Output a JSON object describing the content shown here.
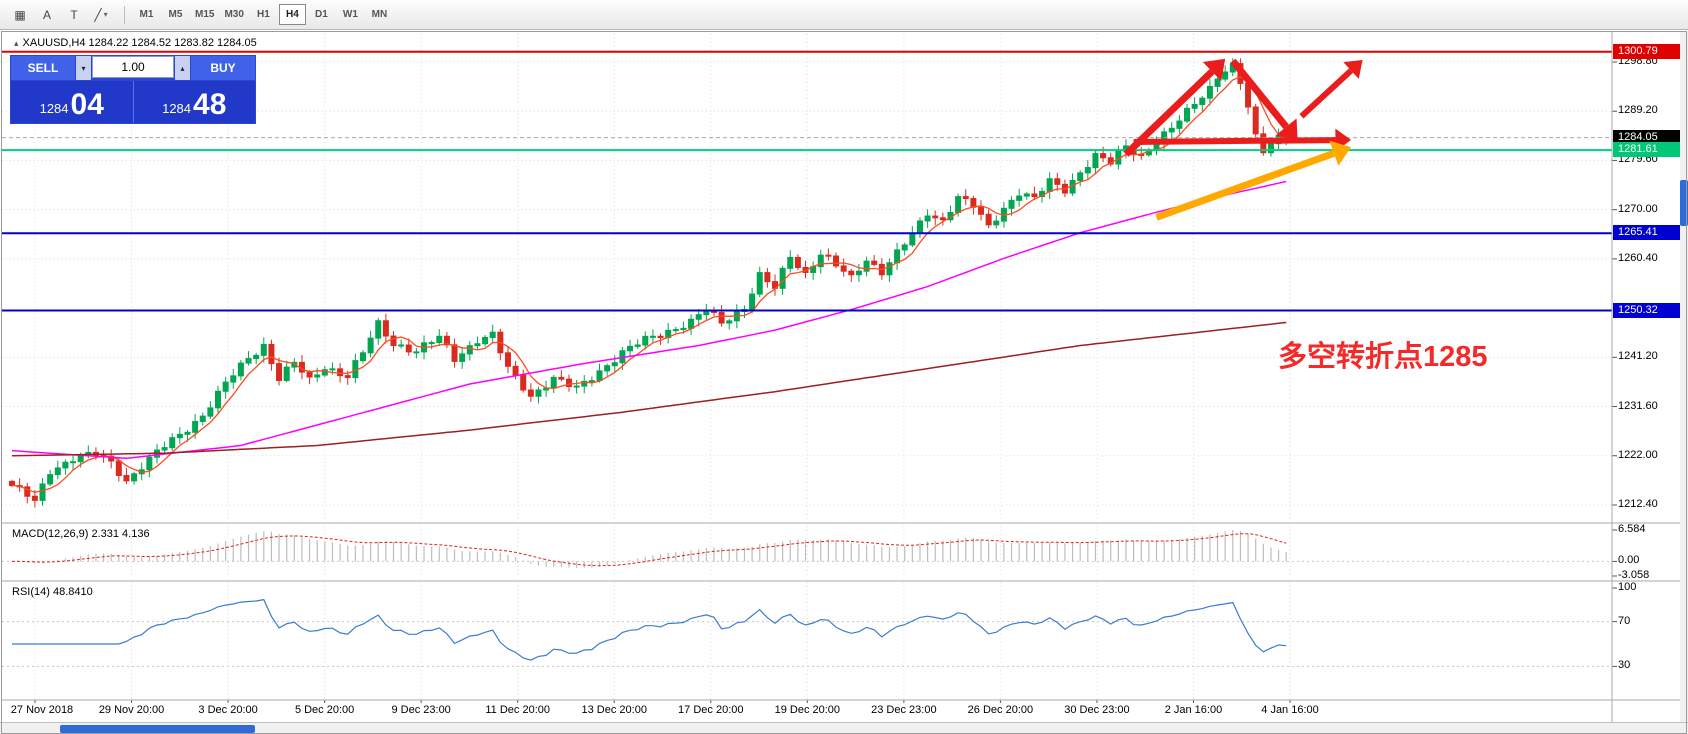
{
  "toolbar": {
    "icons": [
      {
        "name": "grid-icon",
        "glyph": "▦"
      },
      {
        "name": "text-tool-icon",
        "glyph": "A"
      },
      {
        "name": "text-frame-tool-icon",
        "glyph": "T"
      },
      {
        "name": "line-tool-icon",
        "glyph": "╱"
      },
      {
        "name": "dropdown-caret-icon",
        "glyph": "▾"
      }
    ],
    "timeframes": [
      "M1",
      "M5",
      "M15",
      "M30",
      "H1",
      "H4",
      "D1",
      "W1",
      "MN"
    ],
    "active_timeframe": "H4"
  },
  "chart": {
    "title_marker": "▴",
    "title": "XAUUSD,H4  1284.22 1284.52 1283.82 1284.05",
    "annotation": {
      "text": "多空转折点1285",
      "color": "#f42a2a"
    }
  },
  "trade_panel": {
    "sell_label": "SELL",
    "buy_label": "BUY",
    "lot_value": "1.00",
    "dec_glyph": "▾",
    "inc_glyph": "▴",
    "bid": {
      "main": "1284",
      "pips": "04"
    },
    "ask": {
      "main": "1284",
      "pips": "48"
    }
  },
  "indicators": {
    "macd": {
      "label": "MACD(12,26,9) 2.331 4.136",
      "scale": [
        "6.584",
        "0.00",
        "-3.058"
      ]
    },
    "rsi": {
      "label": "RSI(14) 48.8410",
      "scale": [
        "100",
        "70",
        "30"
      ]
    }
  },
  "price_scale": {
    "ticks": [
      {
        "label": "1298.80",
        "price": 1298.8
      },
      {
        "label": "1289.20",
        "price": 1289.2
      },
      {
        "label": "1279.60",
        "price": 1279.6
      },
      {
        "label": "1270.00",
        "price": 1270.0
      },
      {
        "label": "1260.40",
        "price": 1260.4
      },
      {
        "label": "1241.20",
        "price": 1241.2
      },
      {
        "label": "1231.60",
        "price": 1231.6
      },
      {
        "label": "1222.00",
        "price": 1222.0
      },
      {
        "label": "1212.40",
        "price": 1212.4
      }
    ],
    "badges": [
      {
        "label": "1300.79",
        "price": 1300.79,
        "bg": "#e00000",
        "fg": "#ffffff"
      },
      {
        "label": "1284.05",
        "price": 1284.05,
        "bg": "#000000",
        "fg": "#ffffff"
      },
      {
        "label": "1281.61",
        "price": 1281.61,
        "bg": "#00c878",
        "fg": "#ffffff"
      },
      {
        "label": "1265.41",
        "price": 1265.41,
        "bg": "#0000d0",
        "fg": "#ffffff"
      },
      {
        "label": "1250.32",
        "price": 1250.32,
        "bg": "#0000d0",
        "fg": "#ffffff"
      }
    ]
  },
  "time_axis": [
    "27 Nov 2018",
    "29 Nov 20:00",
    "3 Dec 20:00",
    "5 Dec 20:00",
    "9 Dec 23:00",
    "11 Dec 20:00",
    "13 Dec 20:00",
    "17 Dec 20:00",
    "19 Dec 20:00",
    "23 Dec 23:00",
    "26 Dec 20:00",
    "30 Dec 23:00",
    "2 Jan 16:00",
    "4 Jan 16:00"
  ],
  "chart_data": {
    "type": "candlestick",
    "symbol": "XAUUSD",
    "timeframe": "H4",
    "ohlc_current": {
      "open": 1284.22,
      "high": 1284.52,
      "low": 1283.82,
      "close": 1284.05
    },
    "current_price": {
      "bid": 1284.04,
      "ask": 1284.48,
      "last": 1284.05
    },
    "y_axis": {
      "min": 1212.4,
      "max": 1298.8,
      "tick_step": 9.6
    },
    "num_candles": 168,
    "close_anchors": [
      [
        0,
        1216.2
      ],
      [
        2,
        1214.2
      ],
      [
        3,
        1212.9
      ],
      [
        5,
        1219
      ],
      [
        8,
        1221.6
      ],
      [
        11,
        1222.2
      ],
      [
        13,
        1220.6
      ],
      [
        15,
        1217.2
      ],
      [
        17,
        1220
      ],
      [
        19,
        1222.6
      ],
      [
        22,
        1226
      ],
      [
        25,
        1230
      ],
      [
        28,
        1236
      ],
      [
        31,
        1241
      ],
      [
        33,
        1243.6
      ],
      [
        35,
        1237.2
      ],
      [
        37,
        1240
      ],
      [
        39,
        1236.6
      ],
      [
        41,
        1239.4
      ],
      [
        44,
        1237.6
      ],
      [
        46,
        1242
      ],
      [
        48,
        1247.6
      ],
      [
        50,
        1244
      ],
      [
        53,
        1242.4
      ],
      [
        56,
        1245
      ],
      [
        58,
        1241
      ],
      [
        61,
        1244.6
      ],
      [
        63,
        1245.4
      ],
      [
        65,
        1239
      ],
      [
        68,
        1233.8
      ],
      [
        71,
        1237
      ],
      [
        74,
        1235
      ],
      [
        77,
        1238.6
      ],
      [
        80,
        1242
      ],
      [
        83,
        1244.6
      ],
      [
        86,
        1246.4
      ],
      [
        89,
        1248
      ],
      [
        91,
        1250.4
      ],
      [
        93,
        1248
      ],
      [
        96,
        1251
      ],
      [
        98,
        1257
      ],
      [
        100,
        1254.6
      ],
      [
        102,
        1261
      ],
      [
        104,
        1257.6
      ],
      [
        106,
        1261.4
      ],
      [
        108,
        1259
      ],
      [
        110,
        1256.6
      ],
      [
        112,
        1260.4
      ],
      [
        114,
        1258
      ],
      [
        116,
        1261.4
      ],
      [
        118,
        1265
      ],
      [
        120,
        1269.4
      ],
      [
        122,
        1268
      ],
      [
        124,
        1272.4
      ],
      [
        126,
        1270.6
      ],
      [
        128,
        1266.6
      ],
      [
        130,
        1270.4
      ],
      [
        132,
        1273.4
      ],
      [
        134,
        1272
      ],
      [
        136,
        1275.4
      ],
      [
        138,
        1274
      ],
      [
        140,
        1277.4
      ],
      [
        142,
        1280.4
      ],
      [
        144,
        1279
      ],
      [
        146,
        1282.4
      ],
      [
        148,
        1280.6
      ],
      [
        150,
        1283.4
      ],
      [
        152,
        1285.6
      ],
      [
        154,
        1289
      ],
      [
        156,
        1292.4
      ],
      [
        158,
        1295.6
      ],
      [
        160,
        1298.3
      ],
      [
        161,
        1294.6
      ],
      [
        162,
        1290
      ],
      [
        163,
        1284.6
      ],
      [
        164,
        1281.2
      ],
      [
        165,
        1283
      ],
      [
        166,
        1284.4
      ],
      [
        167,
        1284.05
      ]
    ],
    "up_color": "#00a651",
    "down_color": "#d92b20",
    "ma_fast": {
      "period": 5,
      "color": "#ff4a1f"
    },
    "ma_mid": {
      "color": "#ff00ff",
      "anchors": [
        [
          0,
          1223
        ],
        [
          15,
          1221.5
        ],
        [
          30,
          1224
        ],
        [
          45,
          1230
        ],
        [
          60,
          1236
        ],
        [
          75,
          1240
        ],
        [
          90,
          1243.5
        ],
        [
          100,
          1246.5
        ],
        [
          110,
          1250.5
        ],
        [
          120,
          1255
        ],
        [
          130,
          1260.5
        ],
        [
          140,
          1265.5
        ],
        [
          150,
          1269.5
        ],
        [
          158,
          1272.5
        ],
        [
          167,
          1275.5
        ]
      ]
    },
    "ma_slow": {
      "color": "#9b2020",
      "anchors": [
        [
          0,
          1222
        ],
        [
          20,
          1222.5
        ],
        [
          40,
          1224
        ],
        [
          60,
          1227
        ],
        [
          80,
          1230.5
        ],
        [
          100,
          1234.5
        ],
        [
          120,
          1239
        ],
        [
          140,
          1243.5
        ],
        [
          155,
          1246
        ],
        [
          167,
          1248
        ]
      ]
    },
    "levels": [
      {
        "price": 1300.79,
        "color": "#e00000",
        "width": 2
      },
      {
        "price": 1281.61,
        "color": "#00d07c",
        "width": 2
      },
      {
        "price": 1265.41,
        "color": "#0000d0",
        "width": 2
      },
      {
        "price": 1250.32,
        "color": "#0000d0",
        "width": 2
      }
    ],
    "arrows": [
      {
        "name": "impulse-up-arrow",
        "color": "#ea1c1c",
        "width": 7,
        "from": [
          146,
          1280.8
        ],
        "to": [
          159,
          1299.4
        ]
      },
      {
        "name": "pullback-down-arrow",
        "color": "#ea1c1c",
        "width": 7,
        "from": [
          160,
          1299.0
        ],
        "to": [
          168.5,
          1283.4
        ]
      },
      {
        "name": "sideways-arrow",
        "color": "#ea1c1c",
        "width": 6,
        "from": [
          147,
          1283.2
        ],
        "to": [
          175.5,
          1283.6
        ]
      },
      {
        "name": "breakout-up-arrow",
        "color": "#ea1c1c",
        "width": 6,
        "from": [
          169,
          1288.2
        ],
        "to": [
          177,
          1299.2
        ]
      },
      {
        "name": "support-trend-arrow",
        "color": "#ffa800",
        "width": 7,
        "from": [
          150,
          1268.5
        ],
        "to": [
          175.5,
          1282.2
        ]
      }
    ],
    "macd": {
      "params": [
        12,
        26,
        9
      ],
      "current_main": 2.331,
      "current_signal": 4.136,
      "scale_max": 6.584,
      "scale_min": -3.058,
      "hist_color": "#bdbdbd",
      "signal_color": "#e02020"
    },
    "rsi": {
      "period": 14,
      "current": 48.841,
      "levels": [
        30,
        70
      ],
      "color": "#3a7bd5",
      "range": [
        0,
        100
      ]
    }
  }
}
